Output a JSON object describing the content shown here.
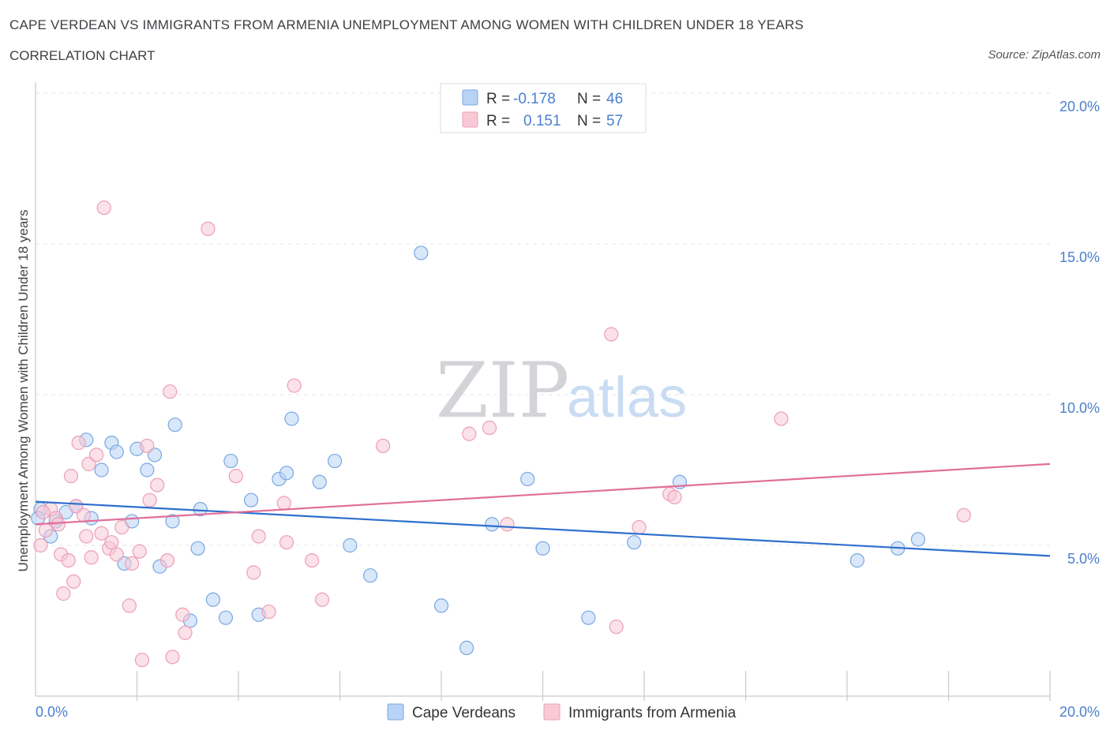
{
  "header": {
    "title": "CAPE VERDEAN VS IMMIGRANTS FROM ARMENIA UNEMPLOYMENT AMONG WOMEN WITH CHILDREN UNDER 18 YEARS",
    "subtitle": "CORRELATION CHART",
    "source": "Source: ZipAtlas.com"
  },
  "watermark": {
    "zip": "ZIP",
    "atlas": "atlas"
  },
  "legend_top": {
    "rows": [
      {
        "r_label": "R =",
        "r_value": "-0.178",
        "n_label": "N =",
        "n_value": "46"
      },
      {
        "r_label": "R =",
        "r_value": "0.151",
        "n_label": "N =",
        "n_value": "57"
      }
    ]
  },
  "colors": {
    "blue_fill": "#b8d3f5",
    "blue_stroke": "#7aa7e0",
    "blue_line": "#2f6fcc",
    "pink_fill": "#f8c8d6",
    "pink_stroke": "#ec9fb8",
    "pink_line": "#e06f98",
    "accent_text": "#4a7fd1"
  },
  "chart_data": {
    "type": "scatter",
    "title": "CAPE VERDEAN VS IMMIGRANTS FROM ARMENIA UNEMPLOYMENT AMONG WOMEN WITH CHILDREN UNDER 18 YEARS",
    "xlabel": "",
    "ylabel": "Unemployment Among Women with Children Under 18 years",
    "xlim": [
      0,
      20
    ],
    "ylim": [
      0,
      20
    ],
    "x_tick_labels": [
      "0.0%",
      "20.0%"
    ],
    "y_ticks": [
      5,
      10,
      15,
      20
    ],
    "y_tick_labels": [
      "5.0%",
      "10.0%",
      "15.0%",
      "20.0%"
    ],
    "grid": true,
    "legend_position": "top-center",
    "series": [
      {
        "name": "Cape Verdeans",
        "color": "#b8d3f5",
        "r": -0.178,
        "n": 46,
        "trend": [
          [
            0,
            6.45
          ],
          [
            20,
            4.65
          ]
        ],
        "points": [
          [
            0.1,
            6.2
          ],
          [
            0.3,
            5.3
          ],
          [
            0.4,
            5.8
          ],
          [
            0.6,
            6.1
          ],
          [
            0.8,
            6.3
          ],
          [
            1.1,
            5.9
          ],
          [
            1.0,
            8.5
          ],
          [
            1.3,
            7.5
          ],
          [
            1.5,
            8.4
          ],
          [
            1.6,
            8.1
          ],
          [
            1.75,
            4.4
          ],
          [
            1.9,
            5.8
          ],
          [
            2.0,
            8.2
          ],
          [
            2.2,
            7.5
          ],
          [
            2.35,
            8.0
          ],
          [
            2.45,
            4.3
          ],
          [
            2.7,
            5.8
          ],
          [
            2.75,
            9.0
          ],
          [
            3.05,
            2.5
          ],
          [
            3.2,
            4.9
          ],
          [
            3.25,
            6.2
          ],
          [
            3.5,
            3.2
          ],
          [
            3.75,
            2.6
          ],
          [
            3.85,
            7.8
          ],
          [
            4.25,
            6.5
          ],
          [
            4.4,
            2.7
          ],
          [
            4.8,
            7.2
          ],
          [
            4.95,
            7.4
          ],
          [
            5.05,
            9.2
          ],
          [
            5.6,
            7.1
          ],
          [
            5.9,
            7.8
          ],
          [
            6.2,
            5.0
          ],
          [
            6.6,
            4.0
          ],
          [
            7.6,
            14.7
          ],
          [
            8.0,
            3.0
          ],
          [
            8.5,
            1.6
          ],
          [
            9.0,
            5.7
          ],
          [
            9.7,
            7.2
          ],
          [
            10.0,
            4.9
          ],
          [
            10.9,
            2.6
          ],
          [
            11.8,
            5.1
          ],
          [
            12.7,
            7.1
          ],
          [
            16.2,
            4.5
          ],
          [
            17.0,
            4.9
          ],
          [
            17.4,
            5.2
          ],
          [
            0.05,
            5.9
          ]
        ]
      },
      {
        "name": "Immigrants from Armenia",
        "color": "#f8c8d6",
        "r": 0.151,
        "n": 57,
        "trend": [
          [
            0,
            5.7
          ],
          [
            20,
            7.7
          ]
        ],
        "points": [
          [
            0.1,
            5.0
          ],
          [
            0.2,
            5.5
          ],
          [
            0.3,
            6.2
          ],
          [
            0.4,
            5.9
          ],
          [
            0.5,
            4.7
          ],
          [
            0.55,
            3.4
          ],
          [
            0.65,
            4.5
          ],
          [
            0.7,
            7.3
          ],
          [
            0.75,
            3.8
          ],
          [
            0.8,
            6.3
          ],
          [
            0.85,
            8.4
          ],
          [
            0.95,
            6.0
          ],
          [
            1.0,
            5.3
          ],
          [
            1.05,
            7.7
          ],
          [
            1.1,
            4.6
          ],
          [
            1.2,
            8.0
          ],
          [
            1.3,
            5.4
          ],
          [
            1.35,
            16.2
          ],
          [
            1.45,
            4.9
          ],
          [
            1.5,
            5.1
          ],
          [
            1.6,
            4.7
          ],
          [
            1.7,
            5.6
          ],
          [
            1.85,
            3.0
          ],
          [
            2.05,
            4.8
          ],
          [
            2.1,
            1.2
          ],
          [
            2.2,
            8.3
          ],
          [
            2.25,
            6.5
          ],
          [
            2.4,
            7.0
          ],
          [
            2.6,
            4.5
          ],
          [
            2.65,
            10.1
          ],
          [
            2.7,
            1.3
          ],
          [
            2.9,
            2.7
          ],
          [
            2.95,
            2.1
          ],
          [
            3.4,
            15.5
          ],
          [
            3.95,
            7.3
          ],
          [
            4.3,
            4.1
          ],
          [
            4.4,
            5.3
          ],
          [
            4.6,
            2.8
          ],
          [
            4.9,
            6.4
          ],
          [
            4.95,
            5.1
          ],
          [
            5.1,
            10.3
          ],
          [
            5.45,
            4.5
          ],
          [
            5.65,
            3.2
          ],
          [
            6.85,
            8.3
          ],
          [
            8.55,
            8.7
          ],
          [
            8.95,
            8.9
          ],
          [
            9.3,
            5.7
          ],
          [
            11.35,
            12.0
          ],
          [
            11.45,
            2.3
          ],
          [
            11.9,
            5.6
          ],
          [
            12.5,
            6.7
          ],
          [
            12.6,
            6.6
          ],
          [
            14.7,
            9.2
          ],
          [
            18.3,
            6.0
          ],
          [
            0.15,
            6.1
          ],
          [
            0.45,
            5.7
          ],
          [
            1.9,
            4.4
          ]
        ]
      }
    ]
  },
  "bottom_legend": [
    {
      "label": "Cape Verdeans"
    },
    {
      "label": "Immigrants from Armenia"
    }
  ]
}
